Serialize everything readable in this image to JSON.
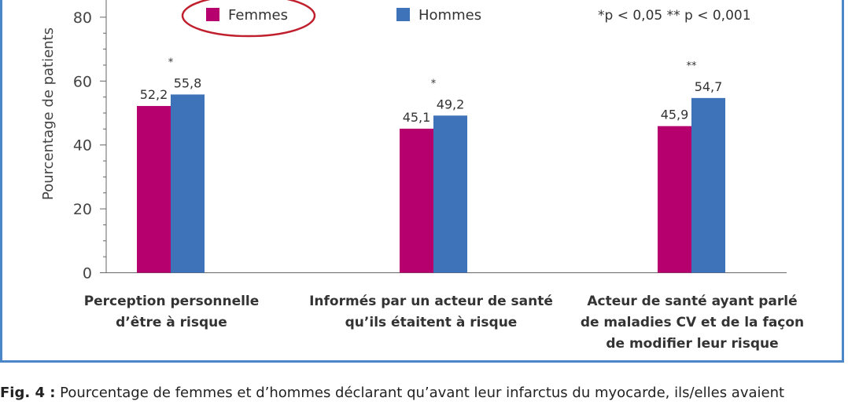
{
  "chart_data": {
    "type": "bar",
    "ylabel": "Pourcentage de patients",
    "ylim": [
      0,
      80
    ],
    "yticks": [
      0,
      20,
      40,
      60,
      80
    ],
    "categories": [
      [
        "Perception personnelle",
        "d’être à risque"
      ],
      [
        "Informés par un acteur de santé",
        "qu’ils étaitent à risque"
      ],
      [
        "Acteur de santé ayant parlé",
        "de maladies CV et de la façon",
        "de modifier leur risque"
      ]
    ],
    "series": [
      {
        "name": "Femmes",
        "color": "#b5006e",
        "values": [
          52.2,
          45.1,
          45.9
        ],
        "labels": [
          "52,2",
          "45,1",
          "45,9"
        ]
      },
      {
        "name": "Hommes",
        "color": "#3e72b9",
        "values": [
          55.8,
          49.2,
          54.7
        ],
        "labels": [
          "55,8",
          "49,2",
          "54,7"
        ]
      }
    ],
    "significance": [
      "*",
      "*",
      "**"
    ],
    "legend_note": "*p < 0,05    ** p < 0,001",
    "legend_placement": "top",
    "grid": false
  },
  "caption": {
    "prefix": "Fig. 4 :",
    "text": " Pourcentage de femmes et d’hommes déclarant qu’avant leur infarctus du myocarde, ils/elles avaient"
  }
}
